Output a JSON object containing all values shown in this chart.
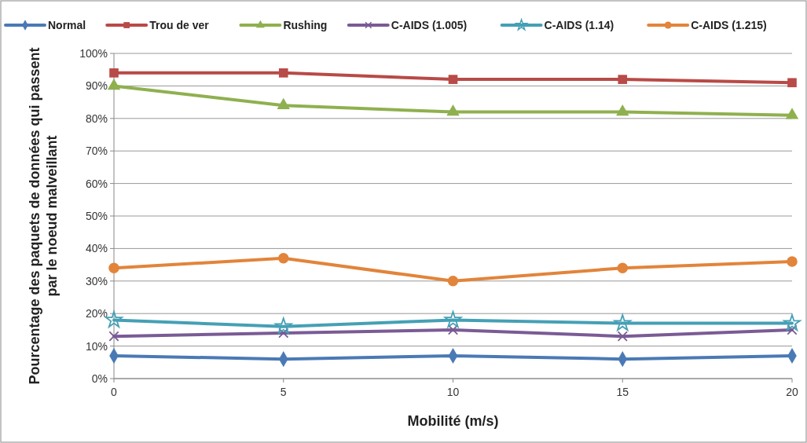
{
  "chart_data": {
    "type": "line",
    "xlabel": "Mobilité (m/s)",
    "ylabel": "Pourcentage des paquets de données qui passent par le noeud malveillant",
    "x": [
      0,
      5,
      10,
      15,
      20
    ],
    "xlim": [
      0,
      20
    ],
    "xticks": [
      0,
      5,
      10,
      15,
      20
    ],
    "ylim": [
      0,
      100
    ],
    "yticks": [
      {
        "value": 0,
        "label": "0%"
      },
      {
        "value": 10,
        "label": "10%"
      },
      {
        "value": 20,
        "label": "20%"
      },
      {
        "value": 30,
        "label": "30%"
      },
      {
        "value": 40,
        "label": "40%"
      },
      {
        "value": 50,
        "label": "50%"
      },
      {
        "value": 60,
        "label": "60%"
      },
      {
        "value": 70,
        "label": "70%"
      },
      {
        "value": 80,
        "label": "80%"
      },
      {
        "value": 90,
        "label": "90%"
      },
      {
        "value": 100,
        "label": "100%"
      }
    ],
    "grid": "y",
    "legend": "top",
    "line_style": "solid",
    "series": [
      {
        "name": "Normal",
        "color": "#4a7ab5",
        "marker": "diamond",
        "values": [
          7,
          6,
          7,
          6,
          7
        ]
      },
      {
        "name": "Trou de ver",
        "color": "#b84a47",
        "marker": "square",
        "values": [
          94,
          94,
          92,
          92,
          91
        ]
      },
      {
        "name": "Rushing",
        "color": "#8fb04f",
        "marker": "triangle",
        "values": [
          90,
          84,
          82,
          82,
          81
        ]
      },
      {
        "name": "C-AIDS (1.005)",
        "color": "#7a5b95",
        "marker": "cross",
        "values": [
          13,
          14,
          15,
          13,
          15
        ]
      },
      {
        "name": "C-AIDS (1.14)",
        "color": "#45a0b5",
        "marker": "star",
        "values": [
          18,
          16,
          18,
          17,
          17
        ]
      },
      {
        "name": "C-AIDS (1.215)",
        "color": "#e2843a",
        "marker": "circle",
        "values": [
          34,
          37,
          30,
          34,
          36
        ]
      }
    ]
  }
}
